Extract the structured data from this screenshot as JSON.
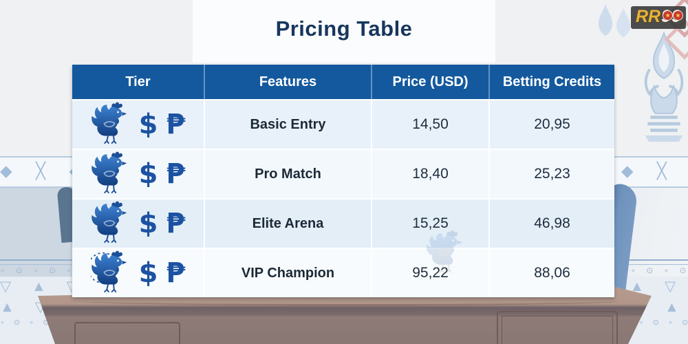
{
  "title": "Pricing Table",
  "logo": {
    "prefix": "RR",
    "digits": [
      "9",
      "9"
    ],
    "star": "★"
  },
  "table": {
    "headers": [
      "Tier",
      "Features",
      "Price (USD)",
      "Betting Credits"
    ],
    "tier_symbols": {
      "rooster": "rooster-icon",
      "dollar": "$",
      "peso": "₱"
    },
    "rows": [
      {
        "feature": "Basic Entry",
        "price": "14,50",
        "credits": "20,95"
      },
      {
        "feature": "Pro Match",
        "price": "18,40",
        "credits": "25,23"
      },
      {
        "feature": "Elite Arena",
        "price": "15,25",
        "credits": "46,98"
      },
      {
        "feature": "VIP Champion",
        "price": "95,22",
        "credits": "88,06"
      }
    ]
  },
  "chart_data": {
    "type": "table",
    "title": "Pricing Table",
    "columns": [
      "Tier",
      "Features",
      "Price (USD)",
      "Betting Credits"
    ],
    "rows": [
      [
        "rooster $ ₱",
        "Basic Entry",
        "14,50",
        "20,95"
      ],
      [
        "rooster $ ₱",
        "Pro Match",
        "18,40",
        "25,23"
      ],
      [
        "rooster $ ₱",
        "Elite Arena",
        "15,25",
        "46,98"
      ],
      [
        "rooster $ ₱",
        "VIP Champion",
        "95,22",
        "88,06"
      ]
    ]
  },
  "colors": {
    "header_bg": "#14599e",
    "title_text": "#17365e",
    "row_bgs": [
      "#e8f1f9",
      "#f2f8fc",
      "#e3eef7",
      "#f8fbfd"
    ],
    "symbol_blue": "#1c52a2",
    "logo_gold": "#e8b33a",
    "logo_red": "#c7372e",
    "desk_top": "#b69c8f",
    "desk_face": "#8e7b78",
    "chair_blue": "#7b9cc4"
  },
  "decor": {
    "diamond_unit": "◆ ╳ ",
    "chain_unit": "∘ ⊙ ",
    "wall_unit_a": "▽ ▲ ",
    "wall_unit_b": "▲ ▽ "
  }
}
